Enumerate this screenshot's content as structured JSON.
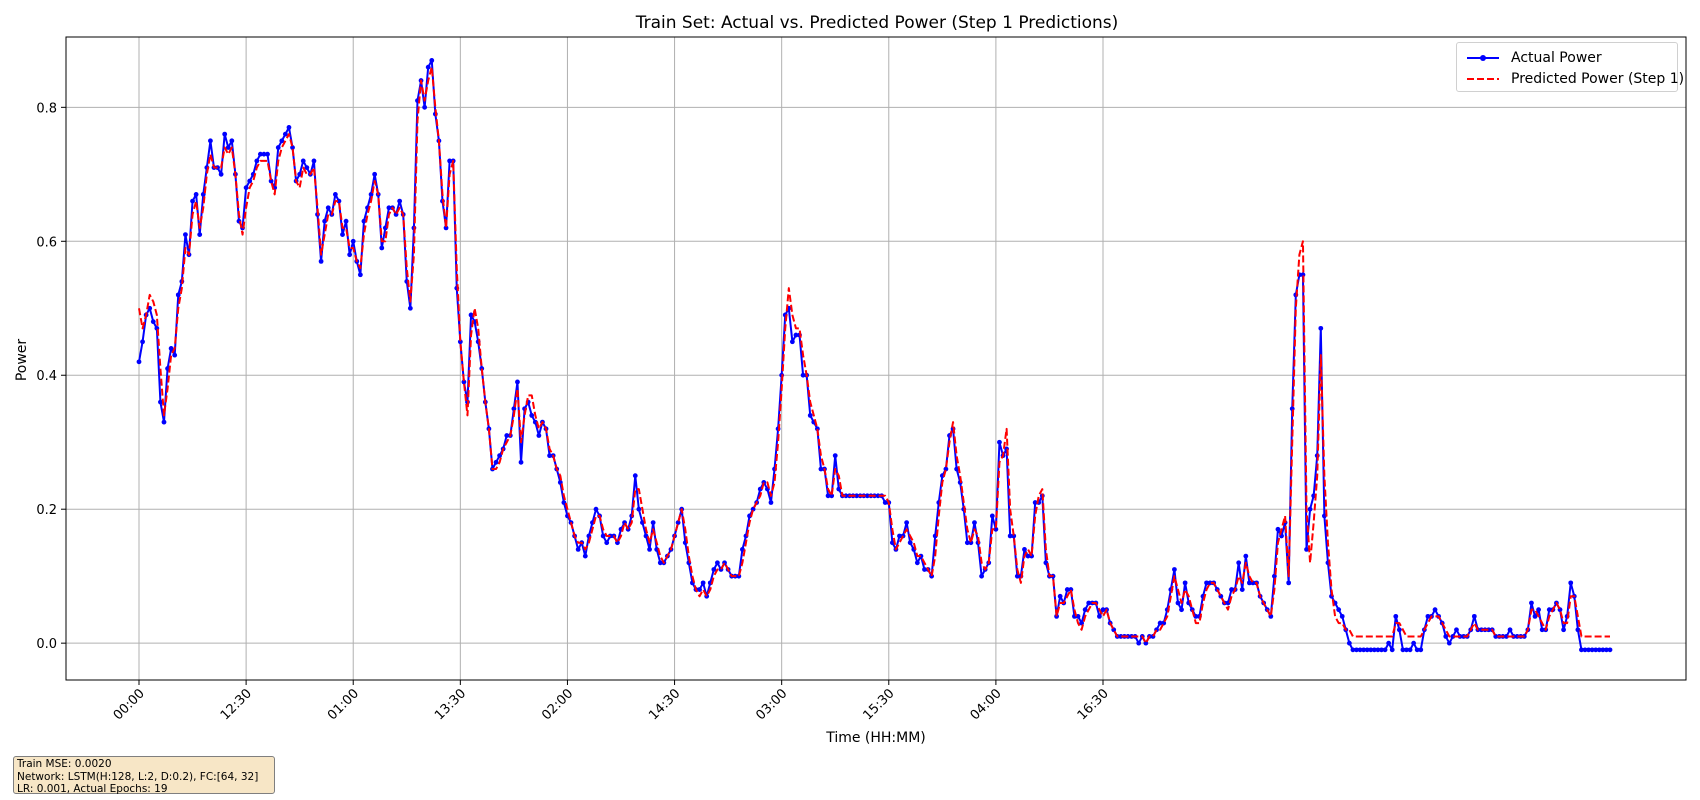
{
  "chart_data": {
    "type": "line",
    "title": "Train Set: Actual vs. Predicted Power (Step 1 Predictions)",
    "xlabel": "Time (HH:MM)",
    "ylabel": "Power",
    "ylim": [
      -0.055,
      0.905
    ],
    "yticks": [
      "0.0",
      "0.2",
      "0.4",
      "0.6",
      "0.8"
    ],
    "xtick_labels": [
      "00:00",
      "12:30",
      "01:00",
      "13:30",
      "02:00",
      "14:30",
      "03:00",
      "15:30",
      "04:00",
      "16:30"
    ],
    "grid": true,
    "legend_position": "top-right",
    "x_note": "sample index 0-300; tick labels every 30 samples",
    "series": [
      {
        "name": "Actual Power",
        "color": "#0000ff",
        "style": "solid-with-dots",
        "values": [
          0.42,
          0.45,
          0.49,
          0.5,
          0.48,
          0.47,
          0.36,
          0.33,
          0.41,
          0.44,
          0.43,
          0.52,
          0.54,
          0.61,
          0.58,
          0.66,
          0.67,
          0.61,
          0.67,
          0.71,
          0.75,
          0.71,
          0.71,
          0.7,
          0.76,
          0.74,
          0.75,
          0.7,
          0.63,
          0.62,
          0.68,
          0.69,
          0.7,
          0.72,
          0.73,
          0.73,
          0.73,
          0.69,
          0.68,
          0.74,
          0.75,
          0.76,
          0.77,
          0.74,
          0.69,
          0.7,
          0.72,
          0.71,
          0.7,
          0.72,
          0.64,
          0.57,
          0.63,
          0.65,
          0.64,
          0.67,
          0.66,
          0.61,
          0.63,
          0.58,
          0.6,
          0.57,
          0.55,
          0.63,
          0.65,
          0.67,
          0.7,
          0.67,
          0.59,
          0.62,
          0.65,
          0.65,
          0.64,
          0.66,
          0.64,
          0.54,
          0.5,
          0.62,
          0.81,
          0.84,
          0.8,
          0.86,
          0.87,
          0.79,
          0.75,
          0.66,
          0.62,
          0.72,
          0.72,
          0.53,
          0.45,
          0.39,
          0.36,
          0.49,
          0.48,
          0.45,
          0.41,
          0.36,
          0.32,
          0.26,
          0.27,
          0.28,
          0.29,
          0.31,
          0.31,
          0.35,
          0.39,
          0.27,
          0.35,
          0.36,
          0.34,
          0.33,
          0.31,
          0.33,
          0.32,
          0.28,
          0.28,
          0.26,
          0.24,
          0.21,
          0.19,
          0.18,
          0.16,
          0.14,
          0.15,
          0.13,
          0.16,
          0.18,
          0.2,
          0.19,
          0.16,
          0.15,
          0.16,
          0.16,
          0.15,
          0.17,
          0.18,
          0.17,
          0.19,
          0.25,
          0.2,
          0.18,
          0.16,
          0.14,
          0.18,
          0.14,
          0.12,
          0.12,
          0.13,
          0.14,
          0.16,
          0.18,
          0.2,
          0.15,
          0.12,
          0.09,
          0.08,
          0.08,
          0.09,
          0.07,
          0.09,
          0.11,
          0.12,
          0.11,
          0.12,
          0.11,
          0.1,
          0.1,
          0.1,
          0.14,
          0.16,
          0.19,
          0.2,
          0.21,
          0.23,
          0.24,
          0.23,
          0.21,
          0.26,
          0.32,
          0.4,
          0.49,
          0.5,
          0.45,
          0.46,
          0.46,
          0.4,
          0.4,
          0.34,
          0.33,
          0.32,
          0.26,
          0.26,
          0.22,
          0.22,
          0.28,
          0.23,
          0.22,
          0.22,
          0.22,
          0.22,
          0.22,
          0.22,
          0.22,
          0.22,
          0.22,
          0.22,
          0.22,
          0.22,
          0.21,
          0.21,
          0.15,
          0.14,
          0.16,
          0.16,
          0.18,
          0.15,
          0.14,
          0.12,
          0.13,
          0.11,
          0.11,
          0.1,
          0.16,
          0.21,
          0.25,
          0.26,
          0.31,
          0.32,
          0.26,
          0.24,
          0.2,
          0.15,
          0.15,
          0.18,
          0.15,
          0.1,
          0.11,
          0.12,
          0.19,
          0.17,
          0.3,
          0.28,
          0.29,
          0.16,
          0.16,
          0.1,
          0.1,
          0.14,
          0.13,
          0.13,
          0.21,
          0.21,
          0.22,
          0.12,
          0.1,
          0.1,
          0.04,
          0.07,
          0.06,
          0.08,
          0.08,
          0.04,
          0.04,
          0.03,
          0.05,
          0.06,
          0.06,
          0.06,
          0.04,
          0.05,
          0.05,
          0.03,
          0.02,
          0.01,
          0.01,
          0.01,
          0.01,
          0.01,
          0.01,
          0.0,
          0.01,
          0.0,
          0.01,
          0.01,
          0.02,
          0.03,
          0.03,
          0.05,
          0.08,
          0.11,
          0.06,
          0.05,
          0.09,
          0.06,
          0.05,
          0.04,
          0.04,
          0.07,
          0.09,
          0.09,
          0.09,
          0.08,
          0.07,
          0.06,
          0.06,
          0.08,
          0.08,
          0.12,
          0.08,
          0.13,
          0.09,
          0.09,
          0.09,
          0.07,
          0.06,
          0.05,
          0.04,
          0.1,
          0.17,
          0.16,
          0.18,
          0.09,
          0.35,
          0.52,
          0.55,
          0.55,
          0.14,
          0.2,
          0.22,
          0.28,
          0.47,
          0.19,
          0.12,
          0.07,
          0.06,
          0.05,
          0.04,
          0.02,
          0.0,
          -0.01,
          -0.01,
          -0.01,
          -0.01,
          -0.01,
          -0.01,
          -0.01,
          -0.01,
          -0.01,
          -0.01,
          0.0,
          -0.01,
          0.04,
          0.02,
          -0.01,
          -0.01,
          -0.01,
          0.0,
          -0.01,
          -0.01,
          0.02,
          0.04,
          0.04,
          0.05,
          0.04,
          0.03,
          0.01,
          0.0,
          0.01,
          0.02,
          0.01,
          0.01,
          0.01,
          0.02,
          0.04,
          0.02,
          0.02,
          0.02,
          0.02,
          0.02,
          0.01,
          0.01,
          0.01,
          0.01,
          0.02,
          0.01,
          0.01,
          0.01,
          0.01,
          0.02,
          0.06,
          0.04,
          0.05,
          0.02,
          0.02,
          0.05,
          0.05,
          0.06,
          0.05,
          0.02,
          0.04,
          0.09,
          0.07,
          0.02,
          -0.01,
          -0.01,
          -0.01,
          -0.01,
          -0.01,
          -0.01,
          -0.01,
          -0.01,
          -0.01
        ]
      },
      {
        "name": "Predicted Power (Step 1)",
        "color": "#ff0000",
        "style": "dashed",
        "values": [
          0.5,
          0.47,
          0.49,
          0.52,
          0.51,
          0.49,
          0.41,
          0.34,
          0.38,
          0.43,
          0.44,
          0.5,
          0.53,
          0.59,
          0.58,
          0.64,
          0.66,
          0.62,
          0.65,
          0.7,
          0.73,
          0.71,
          0.71,
          0.71,
          0.74,
          0.73,
          0.74,
          0.7,
          0.64,
          0.61,
          0.65,
          0.68,
          0.69,
          0.71,
          0.72,
          0.72,
          0.72,
          0.69,
          0.67,
          0.72,
          0.74,
          0.75,
          0.76,
          0.74,
          0.69,
          0.68,
          0.71,
          0.7,
          0.7,
          0.71,
          0.65,
          0.58,
          0.61,
          0.64,
          0.64,
          0.66,
          0.66,
          0.62,
          0.62,
          0.59,
          0.59,
          0.57,
          0.56,
          0.61,
          0.64,
          0.66,
          0.69,
          0.67,
          0.6,
          0.6,
          0.64,
          0.65,
          0.64,
          0.65,
          0.64,
          0.56,
          0.51,
          0.58,
          0.78,
          0.84,
          0.81,
          0.84,
          0.86,
          0.8,
          0.75,
          0.67,
          0.62,
          0.7,
          0.72,
          0.56,
          0.45,
          0.39,
          0.34,
          0.46,
          0.5,
          0.47,
          0.41,
          0.36,
          0.32,
          0.26,
          0.26,
          0.27,
          0.29,
          0.3,
          0.31,
          0.34,
          0.38,
          0.3,
          0.34,
          0.37,
          0.37,
          0.34,
          0.32,
          0.33,
          0.32,
          0.29,
          0.28,
          0.26,
          0.25,
          0.22,
          0.2,
          0.18,
          0.16,
          0.15,
          0.15,
          0.14,
          0.15,
          0.17,
          0.19,
          0.19,
          0.17,
          0.16,
          0.16,
          0.16,
          0.15,
          0.16,
          0.18,
          0.17,
          0.18,
          0.23,
          0.23,
          0.2,
          0.17,
          0.15,
          0.17,
          0.15,
          0.13,
          0.12,
          0.13,
          0.14,
          0.16,
          0.18,
          0.2,
          0.17,
          0.13,
          0.1,
          0.08,
          0.07,
          0.08,
          0.07,
          0.08,
          0.1,
          0.11,
          0.11,
          0.12,
          0.11,
          0.1,
          0.1,
          0.1,
          0.12,
          0.15,
          0.18,
          0.2,
          0.21,
          0.22,
          0.24,
          0.24,
          0.22,
          0.24,
          0.3,
          0.38,
          0.47,
          0.53,
          0.49,
          0.47,
          0.47,
          0.43,
          0.4,
          0.36,
          0.34,
          0.32,
          0.28,
          0.26,
          0.23,
          0.22,
          0.26,
          0.25,
          0.22,
          0.22,
          0.22,
          0.22,
          0.22,
          0.22,
          0.22,
          0.22,
          0.22,
          0.22,
          0.22,
          0.22,
          0.22,
          0.21,
          0.17,
          0.14,
          0.15,
          0.16,
          0.17,
          0.16,
          0.15,
          0.13,
          0.13,
          0.12,
          0.11,
          0.1,
          0.13,
          0.19,
          0.24,
          0.26,
          0.3,
          0.33,
          0.28,
          0.25,
          0.21,
          0.17,
          0.15,
          0.17,
          0.16,
          0.12,
          0.11,
          0.12,
          0.17,
          0.17,
          0.27,
          0.28,
          0.32,
          0.2,
          0.16,
          0.11,
          0.09,
          0.13,
          0.14,
          0.13,
          0.19,
          0.22,
          0.23,
          0.14,
          0.1,
          0.1,
          0.04,
          0.06,
          0.06,
          0.07,
          0.08,
          0.05,
          0.03,
          0.02,
          0.04,
          0.05,
          0.06,
          0.06,
          0.05,
          0.04,
          0.05,
          0.03,
          0.02,
          0.01,
          0.01,
          0.01,
          0.01,
          0.01,
          0.01,
          0.01,
          0.01,
          0.0,
          0.01,
          0.01,
          0.02,
          0.02,
          0.03,
          0.04,
          0.07,
          0.1,
          0.08,
          0.06,
          0.08,
          0.07,
          0.05,
          0.03,
          0.03,
          0.06,
          0.08,
          0.09,
          0.09,
          0.08,
          0.07,
          0.06,
          0.05,
          0.07,
          0.08,
          0.1,
          0.09,
          0.12,
          0.1,
          0.09,
          0.09,
          0.07,
          0.06,
          0.05,
          0.04,
          0.08,
          0.15,
          0.17,
          0.19,
          0.1,
          0.3,
          0.5,
          0.58,
          0.6,
          0.2,
          0.12,
          0.18,
          0.25,
          0.43,
          0.25,
          0.15,
          0.08,
          0.04,
          0.03,
          0.03,
          0.02,
          0.02,
          0.01,
          0.01,
          0.01,
          0.01,
          0.01,
          0.01,
          0.01,
          0.01,
          0.01,
          0.01,
          0.01,
          0.01,
          0.03,
          0.03,
          0.02,
          0.01,
          0.01,
          0.01,
          0.01,
          0.01,
          0.02,
          0.03,
          0.04,
          0.04,
          0.04,
          0.03,
          0.02,
          0.01,
          0.01,
          0.01,
          0.01,
          0.01,
          0.01,
          0.02,
          0.03,
          0.02,
          0.02,
          0.02,
          0.02,
          0.02,
          0.01,
          0.01,
          0.01,
          0.01,
          0.01,
          0.01,
          0.01,
          0.01,
          0.01,
          0.02,
          0.05,
          0.05,
          0.04,
          0.03,
          0.02,
          0.04,
          0.05,
          0.06,
          0.05,
          0.03,
          0.03,
          0.07,
          0.07,
          0.04,
          0.01,
          0.01,
          0.01,
          0.01,
          0.01,
          0.01,
          0.01,
          0.01,
          0.01
        ]
      }
    ]
  },
  "info_box": {
    "lines": [
      "Train MSE: 0.0020",
      "Network: LSTM(H:128, L:2, D:0.2), FC:[64, 32]",
      "LR: 0.001, Actual Epochs: 19"
    ]
  },
  "colors": {
    "actual": "#0000ff",
    "predicted": "#ff0000",
    "grid": "#b0b0b0",
    "info_bg": "#f5deb3"
  }
}
